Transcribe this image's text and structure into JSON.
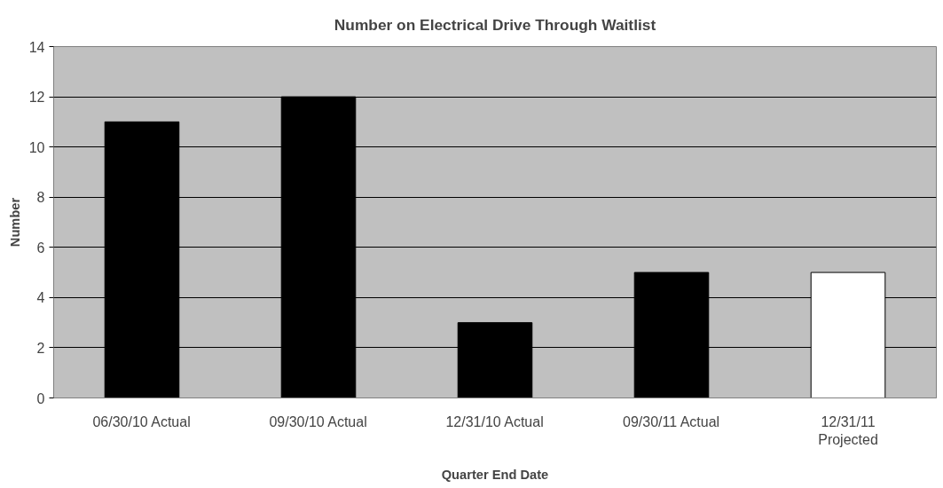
{
  "chart_data": {
    "type": "bar",
    "title": "Number on Electrical Drive Through Waitlist",
    "xlabel": "Quarter End Date",
    "ylabel": "Number",
    "categories": [
      "06/30/10 Actual",
      "09/30/10 Actual",
      "12/31/10 Actual",
      "09/30/11 Actual",
      "12/31/11 Projected"
    ],
    "values": [
      11,
      12,
      3,
      5,
      5
    ],
    "colors": [
      "#000000",
      "#000000",
      "#000000",
      "#000000",
      "#ffffff"
    ],
    "ylim": [
      0,
      14
    ],
    "yticks": [
      0,
      2,
      4,
      6,
      8,
      10,
      12,
      14
    ],
    "grid": "y"
  }
}
